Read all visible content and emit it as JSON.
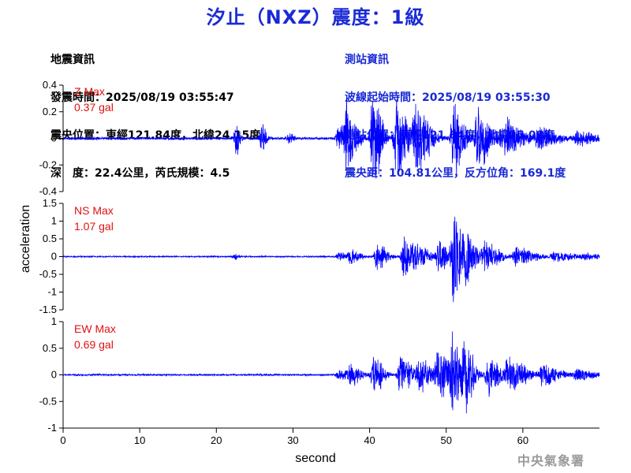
{
  "title": "汐止（NXZ）震度：1級",
  "quake_info": {
    "heading": "地震資訊",
    "origin_time": "發震時間：2025/08/19 03:55:47",
    "epicenter": "震央位置：東經121.84度，北緯24.15度",
    "depth_magnitude": "深　度：22.4公里，芮氏規模：4.5"
  },
  "station_info": {
    "heading": "測站資訊",
    "wave_start": "波線起始時間：2025/08/19 03:55:30",
    "station_location": "測站位置：東經121.64度，北緯25.08度",
    "distance_azimuth": "震央距：104.81公里，反方位角：169.1度"
  },
  "agency": "中央氣象署",
  "colors": {
    "title": "#1a2ad6",
    "trace": "#0000ff",
    "max_label": "#e01010",
    "station_text": "#1a2ad6"
  },
  "chart_data": {
    "type": "line",
    "xlabel": "second",
    "ylabel": "acceleration",
    "xlim": [
      0,
      70
    ],
    "x_ticks": [
      "0",
      "10",
      "20",
      "30",
      "40",
      "50",
      "60"
    ],
    "panels": [
      {
        "component": "Z",
        "max_label": "Z Max",
        "max_value": "0.37 gal",
        "ylim": [
          -0.4,
          0.4
        ],
        "y_ticks": [
          "0.4",
          "0.2",
          "0",
          "-0.2",
          "-0.4"
        ],
        "noise": 0.008,
        "events": [
          {
            "t": 22.7,
            "a": 0.12,
            "dur": 0.3
          },
          {
            "t": 26.0,
            "a": 0.09,
            "dur": 0.4
          },
          {
            "t": 29.5,
            "a": 0.03,
            "dur": 0.4
          },
          {
            "t": 36.0,
            "a": 0.08,
            "dur": 1.0
          },
          {
            "t": 37.0,
            "a": 0.2,
            "dur": 1.0
          },
          {
            "t": 40.5,
            "a": 0.35,
            "dur": 0.8
          },
          {
            "t": 43.5,
            "a": 0.25,
            "dur": 1.2
          },
          {
            "t": 46.0,
            "a": 0.2,
            "dur": 1.5
          },
          {
            "t": 51.0,
            "a": 0.25,
            "dur": 1.0
          },
          {
            "t": 54.0,
            "a": 0.18,
            "dur": 1.5
          },
          {
            "t": 57.5,
            "a": 0.12,
            "dur": 2.0
          },
          {
            "t": 62.0,
            "a": 0.07,
            "dur": 2.0
          },
          {
            "t": 67.0,
            "a": 0.04,
            "dur": 2.0
          }
        ]
      },
      {
        "component": "NS",
        "max_label": "NS Max",
        "max_value": "1.07 gal",
        "ylim": [
          -1.5,
          1.5
        ],
        "y_ticks": [
          "1.5",
          "1",
          "0.5",
          "0",
          "-0.5",
          "-1",
          "-1.5"
        ],
        "noise": 0.015,
        "events": [
          {
            "t": 22.5,
            "a": 0.06,
            "dur": 0.3
          },
          {
            "t": 36.0,
            "a": 0.08,
            "dur": 1.0
          },
          {
            "t": 37.5,
            "a": 0.15,
            "dur": 1.0
          },
          {
            "t": 41.0,
            "a": 0.35,
            "dur": 1.0
          },
          {
            "t": 44.5,
            "a": 0.45,
            "dur": 1.0
          },
          {
            "t": 46.0,
            "a": 0.25,
            "dur": 1.5
          },
          {
            "t": 49.0,
            "a": 0.35,
            "dur": 1.0
          },
          {
            "t": 51.0,
            "a": 1.05,
            "dur": 0.8
          },
          {
            "t": 52.5,
            "a": 0.6,
            "dur": 1.0
          },
          {
            "t": 55.0,
            "a": 0.35,
            "dur": 1.5
          },
          {
            "t": 59.0,
            "a": 0.22,
            "dur": 2.0
          },
          {
            "t": 64.0,
            "a": 0.1,
            "dur": 2.5
          },
          {
            "t": 68.0,
            "a": 0.06,
            "dur": 2.0
          }
        ]
      },
      {
        "component": "EW",
        "max_label": "EW Max",
        "max_value": "0.69 gal",
        "ylim": [
          -1,
          1
        ],
        "y_ticks": [
          "1",
          "0.5",
          "0",
          "-0.5",
          "-1"
        ],
        "noise": 0.012,
        "events": [
          {
            "t": 36.0,
            "a": 0.08,
            "dur": 1.0
          },
          {
            "t": 37.5,
            "a": 0.18,
            "dur": 1.0
          },
          {
            "t": 40.5,
            "a": 0.3,
            "dur": 1.0
          },
          {
            "t": 44.0,
            "a": 0.32,
            "dur": 1.2
          },
          {
            "t": 46.5,
            "a": 0.25,
            "dur": 1.5
          },
          {
            "t": 49.0,
            "a": 0.35,
            "dur": 1.0
          },
          {
            "t": 50.8,
            "a": 0.65,
            "dur": 0.8
          },
          {
            "t": 52.3,
            "a": 0.55,
            "dur": 1.0
          },
          {
            "t": 55.5,
            "a": 0.32,
            "dur": 1.2
          },
          {
            "t": 58.0,
            "a": 0.25,
            "dur": 2.0
          },
          {
            "t": 62.5,
            "a": 0.15,
            "dur": 2.0
          },
          {
            "t": 67.0,
            "a": 0.08,
            "dur": 2.0
          }
        ]
      }
    ]
  }
}
